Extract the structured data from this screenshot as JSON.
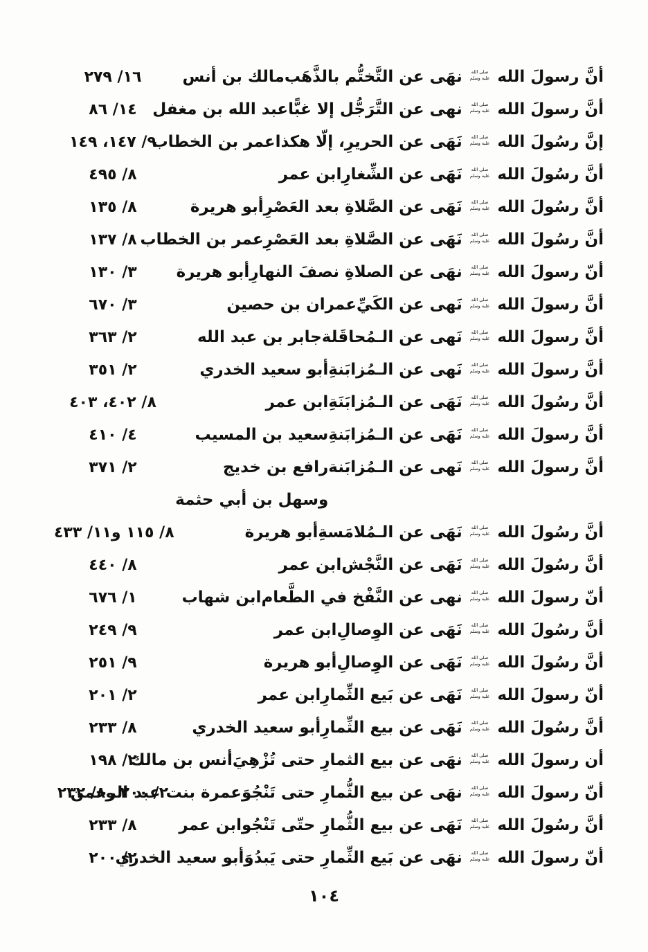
{
  "document": {
    "page_number": "١٠٤"
  },
  "honorific": {
    "line1": "صلى الله",
    "line2": "عليه وسلم"
  },
  "index": {
    "rows": [
      {
        "pre": "أنَّ رسولَ الله",
        "post": "نهَى عن التَّختُّم بالذَّهَب",
        "narrator": "مالك بن أنس",
        "ref": "١٦/ ٢٧٩"
      },
      {
        "pre": "أنَّ رسولَ الله",
        "post": "نهى عن التَّرَجُّل إلا غبًّا",
        "narrator": "عبد الله بن مغفل",
        "ref": "١٤/ ٨٦"
      },
      {
        "pre": "إنَّ رسُولَ الله",
        "post": "نَهَى عن الحريرِ، إلّا هكذا",
        "narrator": "عمر بن الخطاب",
        "ref": "٩/ ١٤٧، ١٤٩"
      },
      {
        "pre": "أنَّ رسُولَ الله",
        "post": "نَهَى عن الشِّغارِ",
        "narrator": "ابن عمر",
        "ref": "٨/ ٤٩٥"
      },
      {
        "pre": "أنَّ رسُولَ الله",
        "post": "نَهَى عن الصَّلاةِ بعد العَصْرِ",
        "narrator": "أبو هريرة",
        "ref": "٨/ ١٣٥"
      },
      {
        "pre": "أنَّ رسُولَ الله",
        "post": "نَهَى عن الصَّلاةِ بعد العَصْرِ",
        "narrator": "عمر بن الخطاب",
        "ref": "٨/ ١٣٧"
      },
      {
        "pre": "أنّ رسولَ الله",
        "post": "نهَى عن الصلاةِ نصفَ النهارِ",
        "narrator": "أبو هريرة",
        "ref": "٣/ ١٣٠"
      },
      {
        "pre": "أنَّ رسولَ الله",
        "post": "نَهى عن الكَيِّ",
        "narrator": "عمران بن حصين",
        "ref": "٣/ ٦٧٠"
      },
      {
        "pre": "أنَّ رسولَ الله",
        "post": "نَهى عن الـمُحاقَلة",
        "narrator": "جابر بن عبد الله",
        "ref": "٢/ ٣٦٣"
      },
      {
        "pre": "أنَّ رسولَ الله",
        "post": "نَهى عن الـمُزابَنةِ",
        "narrator": "أبو سعيد الخدري",
        "ref": "٢/ ٣٥١"
      },
      {
        "pre": "أنَّ رسُولَ الله",
        "post": "نَهَى عن الـمُزابَنَةِ",
        "narrator": "ابن عمر",
        "ref": "٨/ ٤٠٢، ٤٠٣"
      },
      {
        "pre": "أنَّ رسولَ الله",
        "post": "نَهَى عن الـمُزابَنةِ",
        "narrator": "سعيد بن المسيب",
        "ref": "٤/ ٤١٠"
      },
      {
        "pre": "أنَّ رسولَ الله",
        "post": "نَهى عن الـمُزابَنة",
        "narrator": "رافع بن خديج",
        "narrator_cont": "وسهل بن أبي حثمة",
        "ref": "٢/ ٣٧١"
      },
      {
        "pre": "أنَّ رسُولَ الله",
        "post": "نَهَى عن الـمُلامَسةِ",
        "narrator": "أبو هريرة",
        "ref": "٨/ ١١٥ و١١/ ٤٣٣"
      },
      {
        "pre": "أنَّ رسُولَ الله",
        "post": "نَهَى عن النَّجْش",
        "narrator": "ابن عمر",
        "ref": "٨/ ٤٤٠"
      },
      {
        "pre": "أنّ رسولَ الله",
        "post": "نهى عن النَّفْخ في الطَّعام",
        "narrator": "ابن شهاب",
        "ref": "١/ ٦٧٦"
      },
      {
        "pre": "أنَّ رسُولَ الله",
        "post": "نَهَى عن الوِصالِ",
        "narrator": "ابن عمر",
        "ref": "٩/ ٢٤٩"
      },
      {
        "pre": "أنَّ رسُولَ الله",
        "post": "نَهَى عن الوِصالِ",
        "narrator": "أبو هريرة",
        "ref": "٩/ ٢٥١"
      },
      {
        "pre": "أنّ رسولَ الله",
        "post": "نَهَى عن بَيع الثِّمارِ",
        "narrator": "ابن عمر",
        "ref": "٢/ ٢٠١"
      },
      {
        "pre": "أنَّ رسُولَ الله",
        "post": "نَهَى عن بيع الثِّمارِ",
        "narrator": "أبو سعيد الخدري",
        "ref": "٨/ ٢٣٣"
      },
      {
        "pre": "أن رسولَ الله",
        "post": "نهَى عن بيع الثمارِ حتى تُزْهِيَ",
        "narrator": "أنس بن مالك",
        "ref": "٢/ ١٩٨"
      },
      {
        "pre": "أنّ رسولَ الله",
        "post": "نهَى عن بيع الثُّمارِ حتى تَنْجُوَ",
        "narrator": "عمرة بنت عبد الرحمن",
        "ref": "٢/ ٢٠٠ و٨/ ٢٣٢"
      },
      {
        "pre": "أنَّ رسُولَ الله",
        "post": "نَهَى عن بيع الثُّمارِ حتّى تَنْجُو",
        "narrator": "ابن عمر",
        "ref": "٨/ ٢٣٣"
      },
      {
        "pre": "أنّ رسولَ الله",
        "post": "نهَى عن بَيع الثِّمارِ حتى يَبدُوَ",
        "narrator": "أبو سعيد الخدري",
        "ref": "٢/ ٢٠٠"
      }
    ]
  }
}
